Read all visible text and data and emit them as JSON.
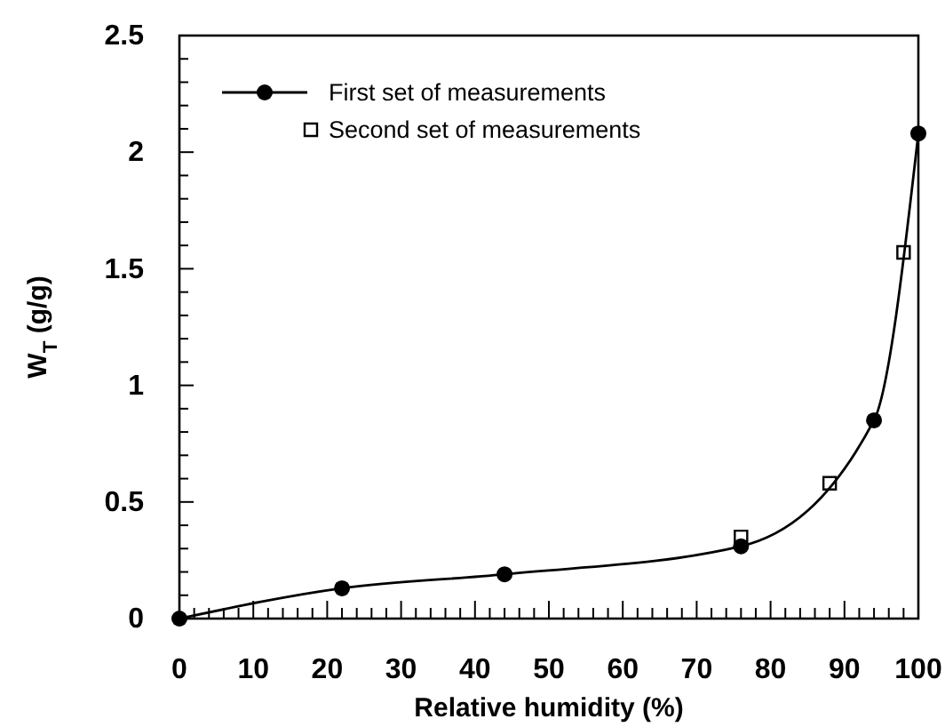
{
  "chart_data": {
    "type": "line",
    "xlabel": "Relative humidity (%)",
    "ylabel": "W$_{T}$ (g/g)",
    "xlim": [
      0,
      100
    ],
    "ylim": [
      0,
      2.5
    ],
    "xticks": [
      0,
      {
        "value": 2,
        "label": null
      },
      {
        "value": 4,
        "label": null
      },
      {
        "value": 6,
        "label": null
      },
      {
        "value": 8,
        "label": null
      },
      10,
      {
        "value": 12,
        "label": null
      },
      {
        "value": 14,
        "label": null
      },
      {
        "value": 16,
        "label": null
      },
      {
        "value": 18,
        "label": null
      },
      20,
      {
        "value": 22,
        "label": null
      },
      {
        "value": 24,
        "label": null
      },
      {
        "value": 26,
        "label": null
      },
      {
        "value": 28,
        "label": null
      },
      30,
      {
        "value": 32,
        "label": null
      },
      {
        "value": 34,
        "label": null
      },
      {
        "value": 36,
        "label": null
      },
      {
        "value": 38,
        "label": null
      },
      40,
      {
        "value": 42,
        "label": null
      },
      {
        "value": 44,
        "label": null
      },
      {
        "value": 46,
        "label": null
      },
      {
        "value": 48,
        "label": null
      },
      50,
      {
        "value": 52,
        "label": null
      },
      {
        "value": 54,
        "label": null
      },
      {
        "value": 56,
        "label": null
      },
      {
        "value": 58,
        "label": null
      },
      60,
      {
        "value": 62,
        "label": null
      },
      {
        "value": 64,
        "label": null
      },
      {
        "value": 66,
        "label": null
      },
      {
        "value": 68,
        "label": null
      },
      70,
      {
        "value": 72,
        "label": null
      },
      {
        "value": 74,
        "label": null
      },
      {
        "value": 76,
        "label": null
      },
      {
        "value": 78,
        "label": null
      },
      80,
      {
        "value": 82,
        "label": null
      },
      {
        "value": 84,
        "label": null
      },
      {
        "value": 86,
        "label": null
      },
      {
        "value": 88,
        "label": null
      },
      90,
      {
        "value": 92,
        "label": null
      },
      {
        "value": 94,
        "label": null
      },
      {
        "value": 96,
        "label": null
      },
      {
        "value": 98,
        "label": null
      },
      100
    ],
    "yticks": [
      0,
      {
        "value": 0.1,
        "label": null
      },
      {
        "value": 0.2,
        "label": null
      },
      {
        "value": 0.3,
        "label": null
      },
      {
        "value": 0.4,
        "label": null
      },
      0.5,
      {
        "value": 0.6,
        "label": null
      },
      {
        "value": 0.7,
        "label": null
      },
      {
        "value": 0.8,
        "label": null
      },
      {
        "value": 0.9,
        "label": null
      },
      1,
      {
        "value": 1.1,
        "label": null
      },
      {
        "value": 1.2,
        "label": null
      },
      {
        "value": 1.3,
        "label": null
      },
      {
        "value": 1.4,
        "label": null
      },
      1.5,
      {
        "value": 1.6,
        "label": null
      },
      {
        "value": 1.7,
        "label": null
      },
      {
        "value": 1.8,
        "label": null
      },
      {
        "value": 1.9,
        "label": null
      },
      2,
      {
        "value": 2.1,
        "label": null
      },
      {
        "value": 2.2,
        "label": null
      },
      {
        "value": 2.3,
        "label": null
      },
      {
        "value": 2.4,
        "label": null
      },
      2.5
    ],
    "grid": false,
    "legend": "top left",
    "series": [
      {
        "name": "First set of measurements",
        "marker": "circle",
        "color": "#000000",
        "x": [
          0,
          22,
          44,
          76,
          94,
          100
        ],
        "values": [
          0,
          0.13,
          0.19,
          0.31,
          0.85,
          2.08
        ]
      },
      {
        "name": "Second set of measurements",
        "type": "scatter",
        "marker": "square",
        "color": "#000000",
        "x": [
          76,
          88,
          98
        ],
        "values": [
          0.35,
          0.58,
          1.57
        ]
      }
    ]
  }
}
